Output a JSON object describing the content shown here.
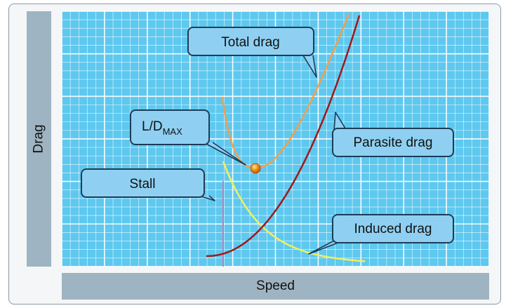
{
  "axes": {
    "y_label": "Drag",
    "x_label": "Speed"
  },
  "callouts": {
    "total": "Total drag",
    "parasite": "Parasite drag",
    "ld_main": "L/D",
    "ld_sub": "MAX",
    "stall": "Stall",
    "induced": "Induced drag"
  },
  "colors": {
    "grid_bg": "#5ec8ef",
    "grid_line": "#ffffff",
    "total_drag": "#f0a050",
    "parasite_drag": "#a01818",
    "induced_drag": "#f0f060",
    "stall_line": "#c678b4",
    "callout_fill": "#8fd0f2",
    "callout_stroke": "#1c3d58",
    "ld_point": "#f08a10"
  }
}
